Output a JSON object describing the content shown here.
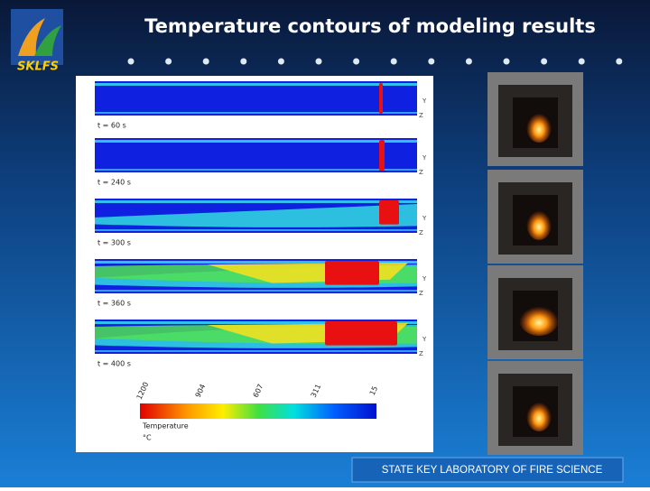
{
  "header": {
    "title": "Temperature contours of modeling results",
    "logo": "SKLFS"
  },
  "panels": [
    {
      "label": "t = 60 s",
      "axis_up": "Y",
      "axis_side": "Z"
    },
    {
      "label": "t = 240 s",
      "axis_up": "Y",
      "axis_side": "Z"
    },
    {
      "label": "t = 300 s",
      "axis_up": "Y",
      "axis_side": "Z"
    },
    {
      "label": "t = 360 s",
      "axis_up": "Y",
      "axis_side": "Z"
    },
    {
      "label": "t = 400 s",
      "axis_up": "Y",
      "axis_side": "Z"
    }
  ],
  "legend": {
    "ticks": [
      "1200",
      "904",
      "607",
      "311",
      "15"
    ],
    "title": "Temperature",
    "unit": "°C"
  },
  "footer": "STATE KEY LABORATORY OF FIRE SCIENCE"
}
